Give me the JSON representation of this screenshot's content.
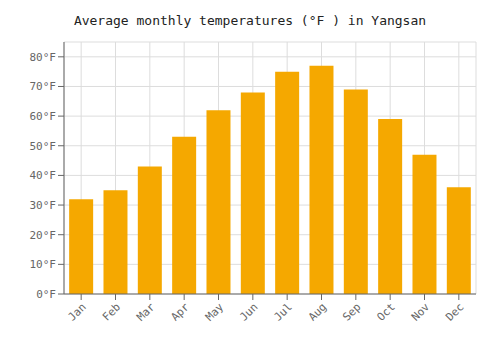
{
  "chart_data": {
    "type": "bar",
    "title": "Average monthly temperatures (°F ) in Yangsan",
    "categories": [
      "Jan",
      "Feb",
      "Mar",
      "Apr",
      "May",
      "Jun",
      "Jul",
      "Aug",
      "Sep",
      "Oct",
      "Nov",
      "Dec"
    ],
    "values": [
      32,
      35,
      43,
      53,
      62,
      68,
      75,
      77,
      69,
      59,
      47,
      36
    ],
    "color": "#F5A800",
    "ylim": [
      0,
      85
    ],
    "yticks": [
      {
        "value": 0,
        "label": "0°F"
      },
      {
        "value": 10,
        "label": "10°F"
      },
      {
        "value": 20,
        "label": "20°F"
      },
      {
        "value": 30,
        "label": "30°F"
      },
      {
        "value": 40,
        "label": "40°F"
      },
      {
        "value": 50,
        "label": "50°F"
      },
      {
        "value": 60,
        "label": "60°F"
      },
      {
        "value": 70,
        "label": "70°F"
      },
      {
        "value": 80,
        "label": "80°F"
      }
    ],
    "grid": true
  }
}
